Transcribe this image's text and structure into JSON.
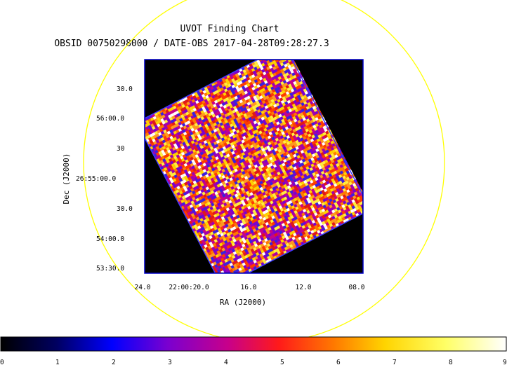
{
  "chart_data": {
    "type": "heatmap",
    "title": "UVOT Finding Chart",
    "subtitle": "OBSID 00750298000 / DATE-OBS 2017-04-28T09:28:27.3",
    "xlabel": "RA (J2000)",
    "ylabel": "Dec (J2000)",
    "x_ticks": [
      "24.0",
      "22:00:20.0",
      "16.0",
      "12.0",
      "08.0"
    ],
    "y_ticks": [
      "30.0",
      "56:00.0",
      "30",
      "26:55:00.0",
      "30.0",
      "54:00.0",
      "53:30.0"
    ],
    "colorbar": {
      "min": 0,
      "max": 9,
      "ticks": [
        "0",
        "1",
        "2",
        "3",
        "4",
        "5",
        "6",
        "7",
        "8",
        "9"
      ],
      "colormap": "heat"
    },
    "grid": false
  },
  "colors": {
    "circle": "#ffff00",
    "frame": "#0000cc",
    "background": "#000000"
  }
}
